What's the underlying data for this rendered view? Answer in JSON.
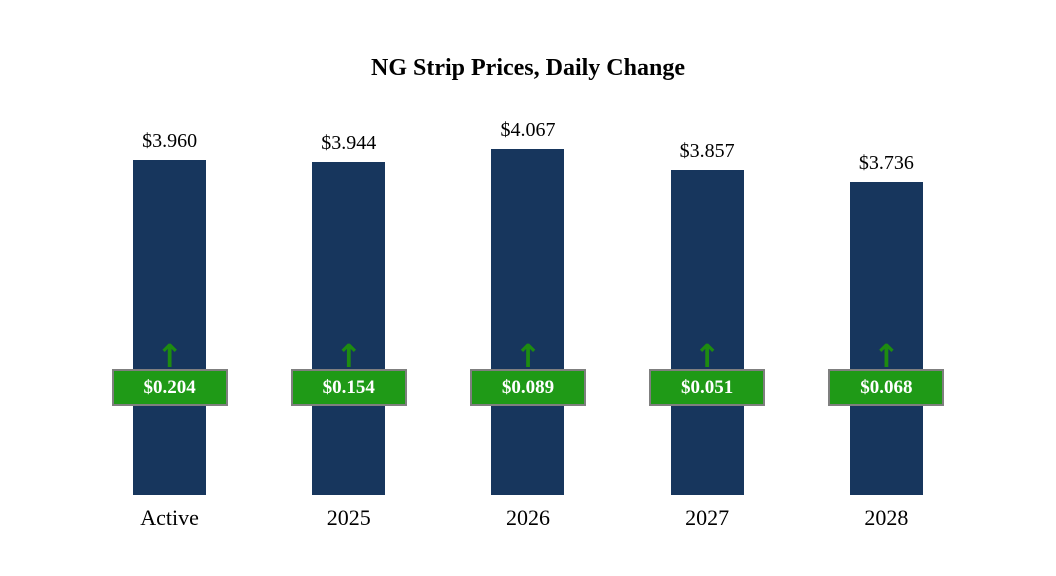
{
  "title": "NG Strip Prices, Daily Change",
  "chart_data": {
    "type": "bar",
    "title": "NG Strip Prices, Daily Change",
    "categories": [
      "Active",
      "2025",
      "2026",
      "2027",
      "2028"
    ],
    "series": [
      {
        "name": "strip_price",
        "values": [
          3.96,
          3.944,
          4.067,
          3.857,
          3.736
        ]
      },
      {
        "name": "daily_change",
        "values": [
          0.204,
          0.154,
          0.089,
          0.051,
          0.068
        ]
      }
    ],
    "price_labels": [
      "$3.960",
      "$3.944",
      "$4.067",
      "$3.857",
      "$3.736"
    ],
    "change_labels": [
      "$0.204",
      "$0.154",
      "$0.089",
      "$0.051",
      "$0.068"
    ],
    "change_direction": "up",
    "arrow_glyph": "↑",
    "xlabel": "",
    "ylabel": "",
    "legend": "none",
    "grid": false,
    "colors": {
      "bar": "#17365d",
      "badge_fill": "#1f9a17",
      "badge_border": "#7f7f7f",
      "badge_text": "#ffffff",
      "arrow": "#1e8c10",
      "background": "#ffffff",
      "text": "#000000"
    }
  }
}
